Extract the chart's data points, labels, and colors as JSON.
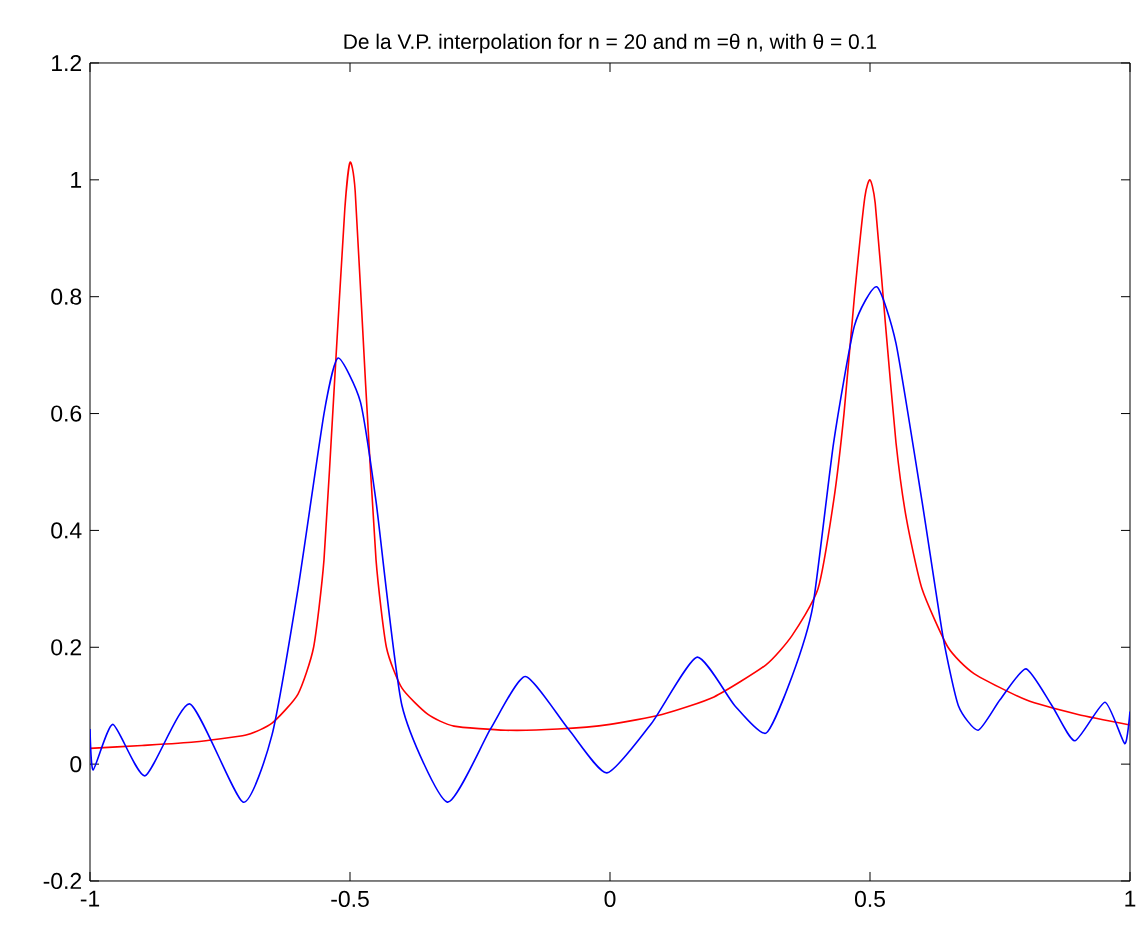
{
  "chart_data": {
    "type": "line",
    "title": "De la V.P. interpolation for n = 20  and  m =θ n,  with   θ = 0.1",
    "xlim": [
      -1,
      1
    ],
    "ylim": [
      -0.2,
      1.2
    ],
    "xticks": [
      -1,
      -0.5,
      0,
      0.5,
      1
    ],
    "yticks": [
      -0.2,
      0,
      0.2,
      0.4,
      0.6,
      0.8,
      1,
      1.2
    ],
    "grid": false,
    "series": [
      {
        "color": "#ff0000",
        "x": [
          -1,
          -0.9,
          -0.8,
          -0.7,
          -0.65,
          -0.6,
          -0.57,
          -0.55,
          -0.53,
          -0.51,
          -0.5,
          -0.49,
          -0.47,
          -0.45,
          -0.43,
          -0.4,
          -0.35,
          -0.3,
          -0.2,
          -0.1,
          0,
          0.1,
          0.2,
          0.3,
          0.35,
          0.4,
          0.43,
          0.45,
          0.47,
          0.49,
          0.5,
          0.51,
          0.53,
          0.55,
          0.57,
          0.6,
          0.65,
          0.7,
          0.8,
          0.9,
          1
        ],
        "values": [
          0.027,
          0.032,
          0.038,
          0.05,
          0.07,
          0.12,
          0.2,
          0.35,
          0.65,
          0.95,
          1.03,
          0.98,
          0.65,
          0.35,
          0.2,
          0.13,
          0.085,
          0.065,
          0.058,
          0.06,
          0.068,
          0.085,
          0.115,
          0.17,
          0.22,
          0.3,
          0.45,
          0.6,
          0.8,
          0.97,
          1.0,
          0.96,
          0.75,
          0.55,
          0.42,
          0.3,
          0.2,
          0.155,
          0.11,
          0.085,
          0.067
        ]
      },
      {
        "color": "#0000ff",
        "x": [
          -1,
          -0.994,
          -0.956,
          -0.894,
          -0.808,
          -0.706,
          -0.65,
          -0.6,
          -0.55,
          -0.523,
          -0.48,
          -0.45,
          -0.4,
          -0.313,
          -0.23,
          -0.163,
          -0.08,
          -0.006,
          0.08,
          0.167,
          0.24,
          0.3,
          0.35,
          0.39,
          0.43,
          0.47,
          0.513,
          0.55,
          0.6,
          0.64,
          0.67,
          0.708,
          0.75,
          0.8,
          0.85,
          0.894,
          0.952,
          0.99,
          1
        ],
        "values": [
          0.06,
          -0.01,
          0.068,
          -0.02,
          0.103,
          -0.065,
          0.05,
          0.3,
          0.6,
          0.695,
          0.62,
          0.45,
          0.1,
          -0.065,
          0.06,
          0.15,
          0.06,
          -0.015,
          0.07,
          0.183,
          0.1,
          0.053,
          0.15,
          0.27,
          0.55,
          0.75,
          0.817,
          0.72,
          0.45,
          0.22,
          0.1,
          0.058,
          0.11,
          0.163,
          0.1,
          0.04,
          0.106,
          0.035,
          0.09
        ]
      }
    ]
  }
}
